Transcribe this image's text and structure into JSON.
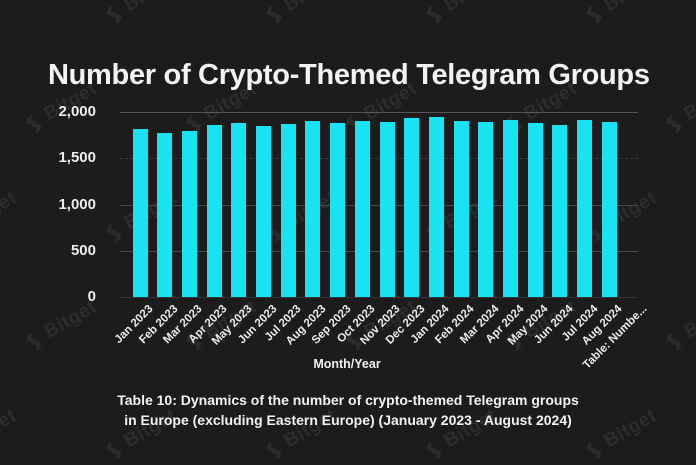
{
  "colors": {
    "background": "#1c1c1c",
    "bar": "#18e3f2",
    "text": "#f3f3f3"
  },
  "watermark": {
    "text": "Bitget"
  },
  "header": {
    "title": "Number of Crypto-Themed Telegram Groups"
  },
  "chart_data": {
    "type": "bar",
    "title": "Number of Crypto-Themed Telegram Groups",
    "xlabel": "Month/Year",
    "ylabel": "",
    "ylim": [
      0,
      2000
    ],
    "grid": true,
    "legend": "none",
    "bar_color": "#18e3f2",
    "y_ticks": [
      {
        "value": 2000,
        "label": "2,000",
        "style": "bright"
      },
      {
        "value": 1500,
        "label": "1,500",
        "style": "dashed"
      },
      {
        "value": 1000,
        "label": "1,000",
        "style": "solid"
      },
      {
        "value": 500,
        "label": "500",
        "style": "solid"
      },
      {
        "value": 0,
        "label": "0",
        "style": "base"
      }
    ],
    "categories": [
      "Jan 2023",
      "Feb 2023",
      "Mar 2023",
      "Apr 2023",
      "May 2023",
      "Jun 2023",
      "Jul 2023",
      "Aug 2023",
      "Sep 2023",
      "Oct 2023",
      "Nov 2023",
      "Dec 2023",
      "Jan 2024",
      "Feb 2024",
      "Mar 2024",
      "Apr 2024",
      "May 2024",
      "Jun 2024",
      "Jul 2024",
      "Aug 2024",
      "Table: Numbe..."
    ],
    "values": [
      1820,
      1770,
      1800,
      1855,
      1885,
      1845,
      1870,
      1905,
      1880,
      1905,
      1895,
      1930,
      1945,
      1900,
      1895,
      1910,
      1880,
      1860,
      1915,
      1895,
      null
    ]
  },
  "caption": {
    "line1": "Table 10: Dynamics of the number of crypto-themed Telegram groups",
    "line2": "in Europe (excluding Eastern Europe) (January 2023 - August 2024)"
  }
}
